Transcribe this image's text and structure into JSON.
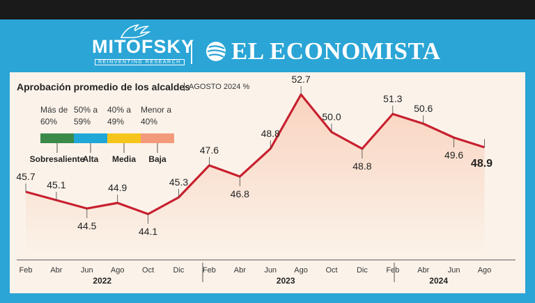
{
  "header": {
    "brand_left": "MITOFSKY",
    "brand_left_sub": "REINVENTING RESEARCH",
    "brand_right": "EL ECONOMISTA"
  },
  "chart_data": {
    "type": "line",
    "title": "Aprobación promedio de los alcaldes",
    "subtitle": "AGOSTO 2024 %",
    "categories": [
      "Feb",
      "Abr",
      "Jun",
      "Ago",
      "Oct",
      "Dic",
      "Feb",
      "Abr",
      "Jun",
      "Ago",
      "Oct",
      "Dic",
      "Feb",
      "Abr",
      "Jun",
      "Ago"
    ],
    "years": [
      {
        "label": "2022",
        "start": 0,
        "end": 5
      },
      {
        "label": "2023",
        "start": 6,
        "end": 11
      },
      {
        "label": "2024",
        "start": 12,
        "end": 15
      }
    ],
    "values": [
      45.7,
      45.1,
      44.5,
      44.9,
      44.1,
      45.3,
      47.6,
      46.8,
      48.8,
      52.7,
      50.0,
      48.8,
      51.3,
      50.6,
      49.6,
      48.9
    ],
    "value_labels": [
      "45.7",
      "45.1",
      "44.5",
      "44.9",
      "44.1",
      "45.3",
      "47.6",
      "46.8",
      "48.8",
      "52.7",
      "50.0",
      "48.8",
      "51.3",
      "50.6",
      "49.6",
      "48.9"
    ],
    "ylim": [
      42,
      54
    ],
    "line_color": "#c8202f",
    "fill_color": "#f9d3bf",
    "legend": [
      {
        "range": "Más de 60%",
        "name": "Sobresaliente",
        "color": "#3b8a4a"
      },
      {
        "range": "50% a 59%",
        "name": "Alta",
        "color": "#1fa7d8"
      },
      {
        "range": "40% a 49%",
        "name": "Media",
        "color": "#f5c51b"
      },
      {
        "range": "Menor a 40%",
        "name": "Baja",
        "color": "#f39a7b"
      }
    ]
  }
}
